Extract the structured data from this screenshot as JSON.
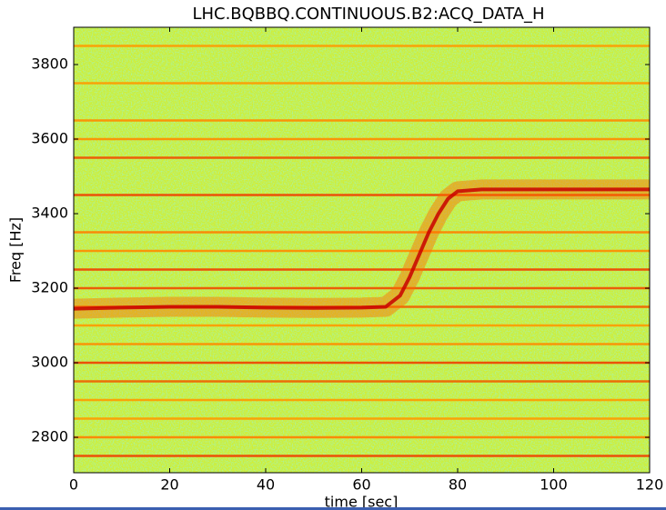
{
  "chart_data": {
    "type": "spectrogram",
    "title": "LHC.BQBBQ.CONTINUOUS.B2:ACQ_DATA_H",
    "x_label": "time [sec]",
    "y_label": "Freq [Hz]",
    "xlim": [
      0,
      120
    ],
    "xticks": [
      0,
      20,
      40,
      60,
      80,
      100,
      120
    ],
    "ylim": [
      2705,
      3900
    ],
    "yticks": [
      2800,
      3000,
      3200,
      3400,
      3600,
      3800
    ],
    "lines": {
      "values": [
        3850,
        3750,
        3650,
        3600,
        3550,
        3450,
        3350,
        3300,
        3250,
        3200,
        3150,
        3100,
        3050,
        3000,
        2950,
        2900,
        2850,
        2800,
        2750
      ],
      "colors": [
        "#ff9a00",
        "#ff9a00",
        "#ff8c00",
        "#ff8c00",
        "#f05000",
        "#f04000",
        "#ff8000",
        "#ff8c00",
        "#f04000",
        "#f05000",
        "#f06000",
        "#ff9a00",
        "#ff8c00",
        "#f04000",
        "#f06000",
        "#ff9a00",
        "#ff9a00",
        "#ff8000",
        "#f04000"
      ]
    },
    "trace": {
      "x": [
        0,
        10,
        20,
        30,
        40,
        50,
        60,
        65,
        68,
        70,
        72,
        74,
        76,
        78,
        80,
        85,
        90,
        100,
        110,
        120
      ],
      "y": [
        3145,
        3148,
        3150,
        3150,
        3148,
        3147,
        3148,
        3150,
        3180,
        3230,
        3290,
        3350,
        3400,
        3440,
        3460,
        3465,
        3465,
        3465,
        3465,
        3465
      ],
      "color": "#c80000",
      "band_color": "#ff6a00"
    }
  }
}
